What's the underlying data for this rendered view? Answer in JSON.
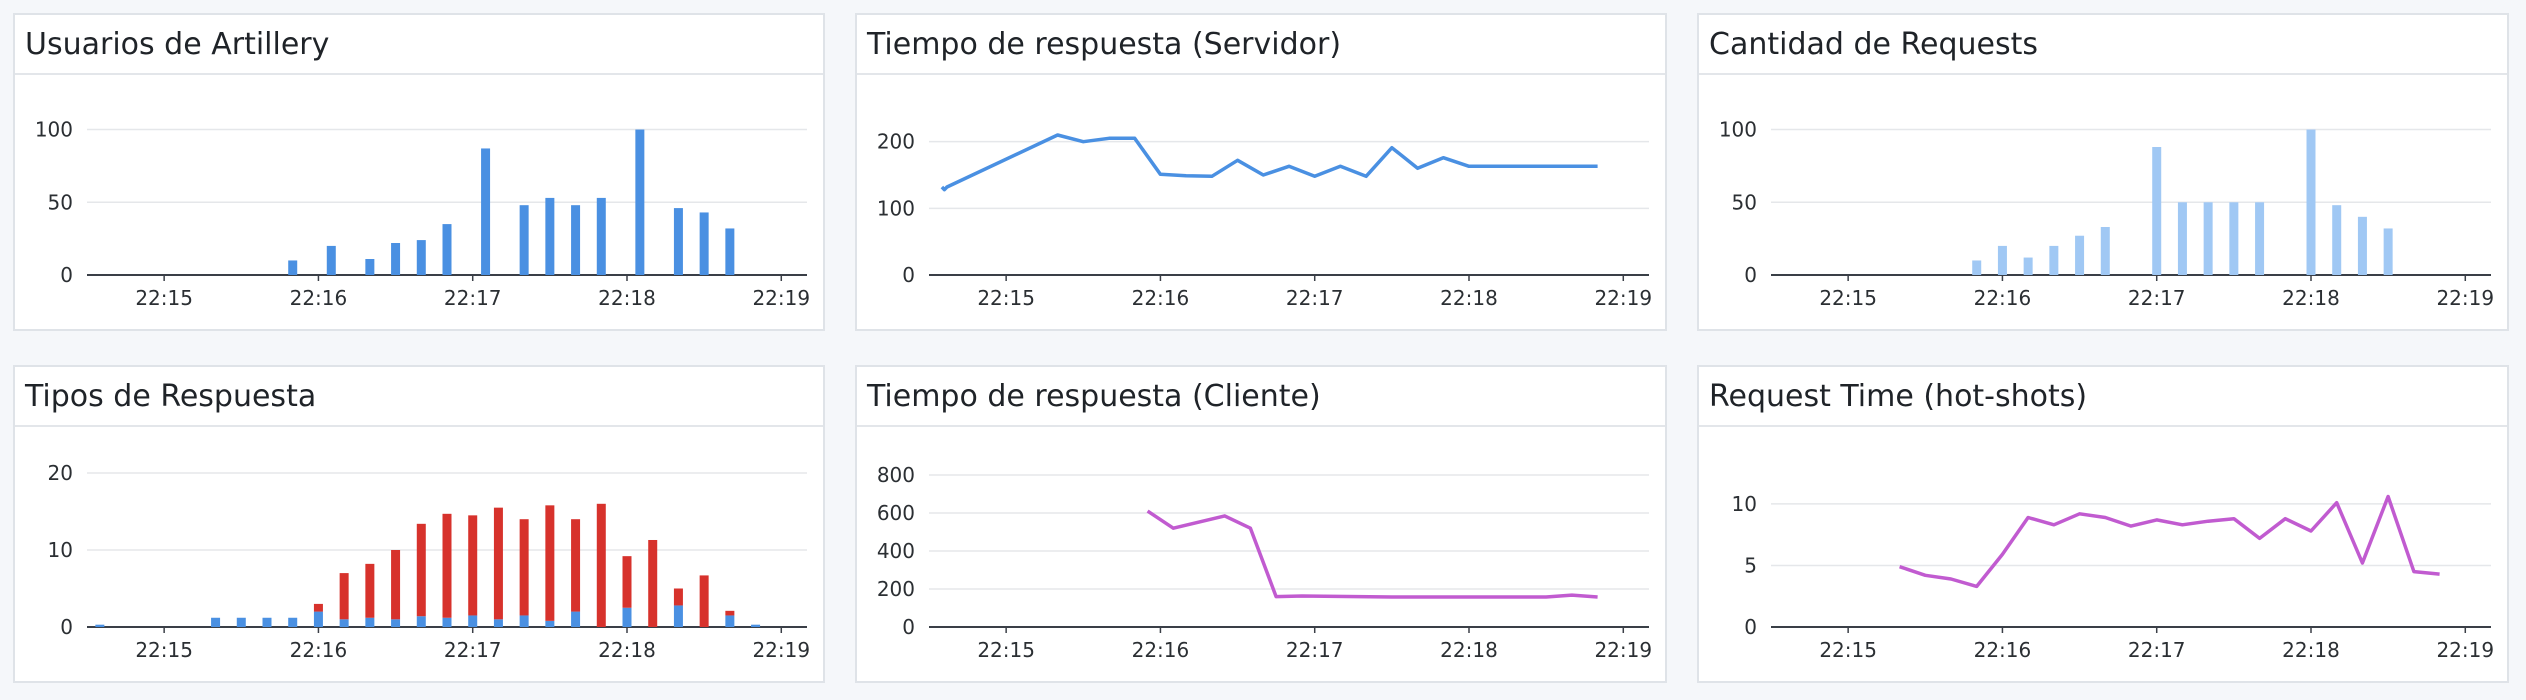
{
  "colors": {
    "blue": "#4a90e2",
    "light_blue": "#a0c8f4",
    "red": "#d7322c",
    "magenta": "#c15bd0",
    "grid": "#e5e7ea",
    "axis": "#3a3f47"
  },
  "panels": [
    {
      "title": "Usuarios de Artillery"
    },
    {
      "title": "Tiempo de respuesta (Servidor)"
    },
    {
      "title": "Cantidad de Requests"
    },
    {
      "title": "Tipos de Respuesta"
    },
    {
      "title": "Tiempo de respuesta (Cliente)"
    },
    {
      "title": "Request Time (hot-shots)"
    }
  ],
  "chart_data": [
    {
      "type": "bar",
      "title": "Usuarios de Artillery",
      "time_ticks": [
        "22:15",
        "22:16",
        "22:17",
        "22:18",
        "22:19"
      ],
      "y_ticks": [
        "0",
        "50",
        "100"
      ],
      "ylim": [
        0,
        110
      ],
      "color": "#4a90e2",
      "bars": [
        {
          "t": "22:15:50",
          "y": 10
        },
        {
          "t": "22:16:05",
          "y": 20
        },
        {
          "t": "22:16:20",
          "y": 11
        },
        {
          "t": "22:16:30",
          "y": 22
        },
        {
          "t": "22:16:40",
          "y": 24
        },
        {
          "t": "22:16:50",
          "y": 35
        },
        {
          "t": "22:17:05",
          "y": 87
        },
        {
          "t": "22:17:20",
          "y": 48
        },
        {
          "t": "22:17:30",
          "y": 53
        },
        {
          "t": "22:17:40",
          "y": 48
        },
        {
          "t": "22:17:50",
          "y": 53
        },
        {
          "t": "22:18:05",
          "y": 100
        },
        {
          "t": "22:18:20",
          "y": 46
        },
        {
          "t": "22:18:30",
          "y": 43
        },
        {
          "t": "22:18:40",
          "y": 32
        }
      ]
    },
    {
      "type": "line",
      "title": "Tiempo de respuesta (Servidor)",
      "time_ticks": [
        "22:15",
        "22:16",
        "22:17",
        "22:18",
        "22:19"
      ],
      "y_ticks": [
        "0",
        "100",
        "200"
      ],
      "ylim": [
        0,
        240
      ],
      "color": "#4a90e2",
      "series": [
        {
          "points": [
            {
              "t": "22:14:35",
              "y": 132
            },
            {
              "t": "22:14:36",
              "y": 128
            },
            {
              "t": "22:14:37",
              "y": 132
            },
            {
              "t": "22:15:20",
              "y": 210
            },
            {
              "t": "22:15:30",
              "y": 200
            },
            {
              "t": "22:15:40",
              "y": 205
            },
            {
              "t": "22:15:50",
              "y": 205
            },
            {
              "t": "22:16:00",
              "y": 151
            },
            {
              "t": "22:16:10",
              "y": 149
            },
            {
              "t": "22:16:20",
              "y": 148
            },
            {
              "t": "22:16:30",
              "y": 172
            },
            {
              "t": "22:16:40",
              "y": 150
            },
            {
              "t": "22:16:50",
              "y": 163
            },
            {
              "t": "22:17:00",
              "y": 148
            },
            {
              "t": "22:17:10",
              "y": 163
            },
            {
              "t": "22:17:20",
              "y": 148
            },
            {
              "t": "22:17:30",
              "y": 191
            },
            {
              "t": "22:17:40",
              "y": 160
            },
            {
              "t": "22:17:50",
              "y": 176
            },
            {
              "t": "22:18:00",
              "y": 163
            },
            {
              "t": "22:18:50",
              "y": 163
            }
          ]
        }
      ]
    },
    {
      "type": "bar",
      "title": "Cantidad de Requests",
      "time_ticks": [
        "22:15",
        "22:16",
        "22:17",
        "22:18",
        "22:19"
      ],
      "y_ticks": [
        "0",
        "50",
        "100"
      ],
      "ylim": [
        0,
        110
      ],
      "color": "#a0c8f4",
      "bars": [
        {
          "t": "22:15:50",
          "y": 10
        },
        {
          "t": "22:16:00",
          "y": 20
        },
        {
          "t": "22:16:10",
          "y": 12
        },
        {
          "t": "22:16:20",
          "y": 20
        },
        {
          "t": "22:16:30",
          "y": 27
        },
        {
          "t": "22:16:40",
          "y": 33
        },
        {
          "t": "22:17:00",
          "y": 88
        },
        {
          "t": "22:17:10",
          "y": 50
        },
        {
          "t": "22:17:20",
          "y": 50
        },
        {
          "t": "22:17:30",
          "y": 50
        },
        {
          "t": "22:17:40",
          "y": 50
        },
        {
          "t": "22:18:00",
          "y": 100
        },
        {
          "t": "22:18:10",
          "y": 48
        },
        {
          "t": "22:18:20",
          "y": 40
        },
        {
          "t": "22:18:30",
          "y": 32
        }
      ]
    },
    {
      "type": "bar",
      "title": "Tipos de Respuesta",
      "stacked": true,
      "time_ticks": [
        "22:15",
        "22:16",
        "22:17",
        "22:18",
        "22:19"
      ],
      "y_ticks": [
        "0",
        "10",
        "20"
      ],
      "ylim": [
        0,
        20
      ],
      "series_colors": [
        "#4a90e2",
        "#d7322c"
      ],
      "bars": [
        {
          "t": "22:14:35",
          "s": [
            0.3,
            0
          ]
        },
        {
          "t": "22:15:20",
          "s": [
            1.2,
            0
          ]
        },
        {
          "t": "22:15:30",
          "s": [
            1.2,
            0
          ]
        },
        {
          "t": "22:15:40",
          "s": [
            1.2,
            0
          ]
        },
        {
          "t": "22:15:50",
          "s": [
            1.2,
            0
          ]
        },
        {
          "t": "22:16:00",
          "s": [
            2.0,
            1.0
          ]
        },
        {
          "t": "22:16:10",
          "s": [
            1.0,
            6.0
          ]
        },
        {
          "t": "22:16:20",
          "s": [
            1.2,
            7.0
          ]
        },
        {
          "t": "22:16:30",
          "s": [
            1.0,
            9.0
          ]
        },
        {
          "t": "22:16:40",
          "s": [
            1.4,
            12.0
          ]
        },
        {
          "t": "22:16:50",
          "s": [
            1.2,
            13.5
          ]
        },
        {
          "t": "22:17:00",
          "s": [
            1.5,
            13.0
          ]
        },
        {
          "t": "22:17:10",
          "s": [
            1.0,
            14.5
          ]
        },
        {
          "t": "22:17:20",
          "s": [
            1.5,
            12.5
          ]
        },
        {
          "t": "22:17:30",
          "s": [
            0.8,
            15.0
          ]
        },
        {
          "t": "22:17:40",
          "s": [
            2.0,
            12.0
          ]
        },
        {
          "t": "22:17:50",
          "s": [
            0,
            16.0
          ]
        },
        {
          "t": "22:18:00",
          "s": [
            2.5,
            6.7
          ]
        },
        {
          "t": "22:18:10",
          "s": [
            0,
            11.3
          ]
        },
        {
          "t": "22:18:20",
          "s": [
            2.8,
            2.2
          ]
        },
        {
          "t": "22:18:30",
          "s": [
            0,
            6.7
          ]
        },
        {
          "t": "22:18:40",
          "s": [
            1.5,
            0.6
          ]
        },
        {
          "t": "22:18:50",
          "s": [
            0.3,
            0
          ]
        }
      ]
    },
    {
      "type": "line",
      "title": "Tiempo de respuesta (Cliente)",
      "time_ticks": [
        "22:15",
        "22:16",
        "22:17",
        "22:18",
        "22:19"
      ],
      "y_ticks": [
        "0",
        "200",
        "400",
        "600",
        "800"
      ],
      "ylim": [
        0,
        800
      ],
      "color": "#c15bd0",
      "series": [
        {
          "points": [
            {
              "t": "22:15:55",
              "y": 610
            },
            {
              "t": "22:16:05",
              "y": 520
            },
            {
              "t": "22:16:25",
              "y": 585
            },
            {
              "t": "22:16:35",
              "y": 520
            },
            {
              "t": "22:16:45",
              "y": 160
            },
            {
              "t": "22:16:55",
              "y": 163
            },
            {
              "t": "22:17:30",
              "y": 158
            },
            {
              "t": "22:18:00",
              "y": 158
            },
            {
              "t": "22:18:30",
              "y": 158
            },
            {
              "t": "22:18:40",
              "y": 168
            },
            {
              "t": "22:18:50",
              "y": 158
            }
          ]
        }
      ]
    },
    {
      "type": "line",
      "title": "Request Time (hot-shots)",
      "time_ticks": [
        "22:15",
        "22:16",
        "22:17",
        "22:18",
        "22:19"
      ],
      "y_ticks": [
        "0",
        "5",
        "10"
      ],
      "ylim": [
        0,
        13
      ],
      "color": "#c15bd0",
      "series": [
        {
          "points": [
            {
              "t": "22:15:20",
              "y": 4.9
            },
            {
              "t": "22:15:30",
              "y": 4.2
            },
            {
              "t": "22:15:40",
              "y": 3.9
            },
            {
              "t": "22:15:50",
              "y": 3.3
            },
            {
              "t": "22:16:00",
              "y": 5.9
            },
            {
              "t": "22:16:10",
              "y": 8.9
            },
            {
              "t": "22:16:20",
              "y": 8.3
            },
            {
              "t": "22:16:30",
              "y": 9.2
            },
            {
              "t": "22:16:40",
              "y": 8.9
            },
            {
              "t": "22:16:50",
              "y": 8.2
            },
            {
              "t": "22:17:00",
              "y": 8.7
            },
            {
              "t": "22:17:10",
              "y": 8.3
            },
            {
              "t": "22:17:20",
              "y": 8.6
            },
            {
              "t": "22:17:30",
              "y": 8.8
            },
            {
              "t": "22:17:40",
              "y": 7.2
            },
            {
              "t": "22:17:50",
              "y": 8.8
            },
            {
              "t": "22:18:00",
              "y": 7.8
            },
            {
              "t": "22:18:10",
              "y": 10.1
            },
            {
              "t": "22:18:20",
              "y": 5.2
            },
            {
              "t": "22:18:30",
              "y": 10.6
            },
            {
              "t": "22:18:40",
              "y": 4.5
            },
            {
              "t": "22:18:50",
              "y": 4.3
            }
          ]
        }
      ]
    }
  ]
}
